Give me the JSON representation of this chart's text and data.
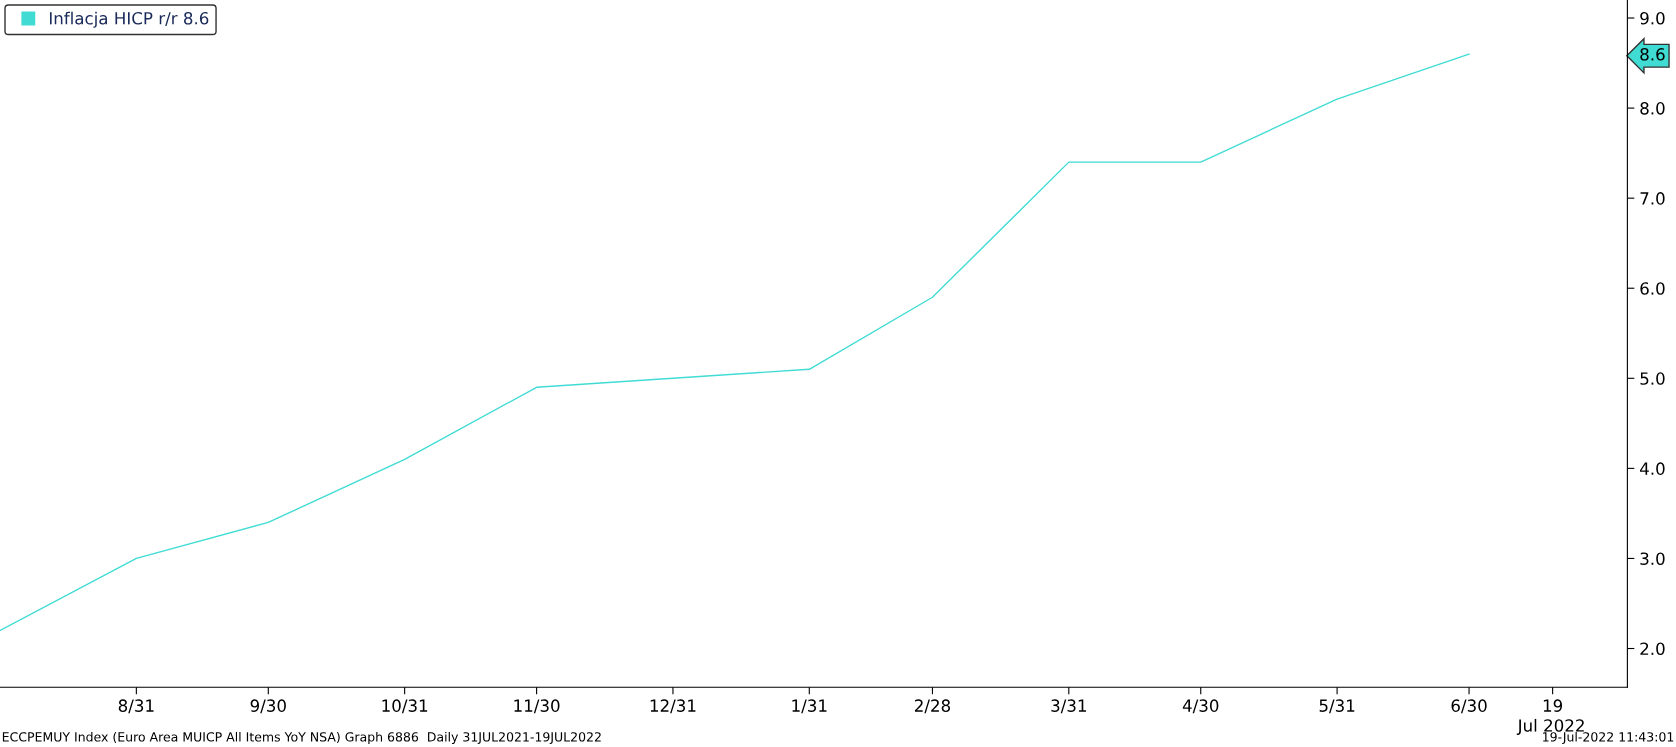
{
  "chart_data": {
    "type": "line",
    "x": [
      "2021-07-31",
      "2021-08-31",
      "2021-09-30",
      "2021-10-31",
      "2021-11-30",
      "2021-12-31",
      "2022-01-31",
      "2022-02-28",
      "2022-03-31",
      "2022-04-30",
      "2022-05-31",
      "2022-06-30"
    ],
    "series": [
      {
        "name": "Inflacja HICP r/r 8.6",
        "color": "#40dcd4",
        "values": [
          2.2,
          3.0,
          3.4,
          4.1,
          4.9,
          5.0,
          5.1,
          5.9,
          7.4,
          7.4,
          8.1,
          8.6
        ]
      }
    ],
    "xlim": [
      "2021-07-31",
      "2022-08-05"
    ],
    "xticks": [
      {
        "value": "2021-08-31",
        "label": "8/31"
      },
      {
        "value": "2021-09-30",
        "label": "9/30"
      },
      {
        "value": "2021-10-31",
        "label": "10/31"
      },
      {
        "value": "2021-11-30",
        "label": "11/30"
      },
      {
        "value": "2021-12-31",
        "label": "12/31"
      },
      {
        "value": "2022-01-31",
        "label": "1/31"
      },
      {
        "value": "2022-02-28",
        "label": "2/28"
      },
      {
        "value": "2022-03-31",
        "label": "3/31"
      },
      {
        "value": "2022-04-30",
        "label": "4/30"
      },
      {
        "value": "2022-05-31",
        "label": "5/31"
      },
      {
        "value": "2022-06-30",
        "label": "6/30"
      },
      {
        "value": "2022-07-19",
        "label": "19"
      }
    ],
    "ylim": [
      1.57,
      9.2
    ],
    "yticks": [
      {
        "value": 2,
        "label": "2.0"
      },
      {
        "value": 3,
        "label": "3.0"
      },
      {
        "value": 4,
        "label": "4.0"
      },
      {
        "value": 5,
        "label": "5.0"
      },
      {
        "value": 6,
        "label": "6.0"
      },
      {
        "value": 7,
        "label": "7.0"
      },
      {
        "value": 8,
        "label": "8.0"
      },
      {
        "value": 8.6,
        "label": "8.6"
      },
      {
        "value": 9,
        "label": "9.0"
      }
    ],
    "grid": false,
    "legend": "top left",
    "marker": "none",
    "line_style": "solid",
    "annotations": [
      "Jul 2022",
      "ECCPEMUY Index (Euro Area MUICP All Items YoY NSA) Graph 6886  Daily 31JUL2021-19JUL2022",
      "19-Jul-2022 11:43:01"
    ]
  }
}
